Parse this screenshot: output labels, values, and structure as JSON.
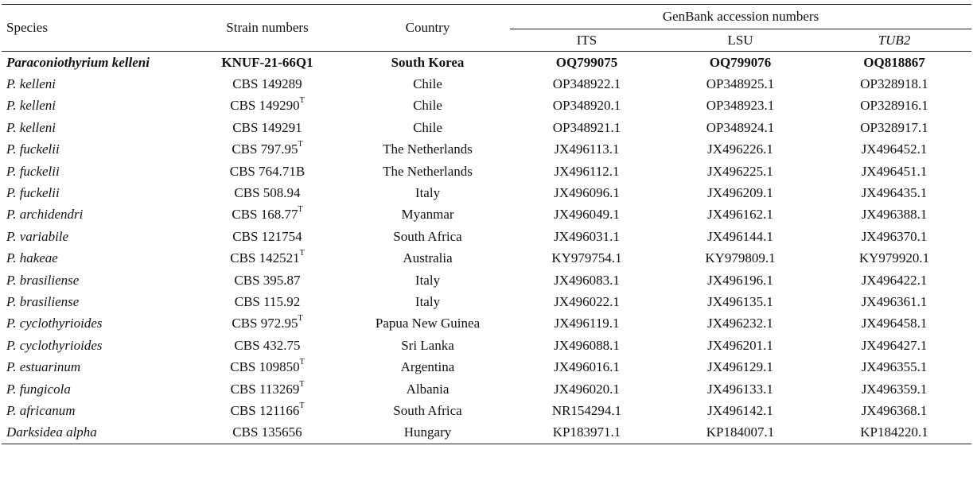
{
  "headers": {
    "species": "Species",
    "strain": "Strain numbers",
    "country": "Country",
    "genbank": "GenBank accession numbers",
    "its": "ITS",
    "lsu": "LSU",
    "tub2": "TUB2"
  },
  "rows": [
    {
      "species": "Paraconiothyrium kelleni",
      "strain": "KNUF-21-66Q1",
      "sup": "",
      "country": "South Korea",
      "its": "OQ799075",
      "lsu": "OQ799076",
      "tub2": "OQ818867",
      "bold": true
    },
    {
      "species": "P. kelleni",
      "strain": "CBS 149289",
      "sup": "",
      "country": "Chile",
      "its": "OP348922.1",
      "lsu": "OP348925.1",
      "tub2": "OP328918.1",
      "bold": false
    },
    {
      "species": "P. kelleni",
      "strain": "CBS 149290",
      "sup": "T",
      "country": "Chile",
      "its": "OP348920.1",
      "lsu": "OP348923.1",
      "tub2": "OP328916.1",
      "bold": false
    },
    {
      "species": "P. kelleni",
      "strain": "CBS 149291",
      "sup": "",
      "country": "Chile",
      "its": "OP348921.1",
      "lsu": "OP348924.1",
      "tub2": "OP328917.1",
      "bold": false
    },
    {
      "species": "P. fuckelii",
      "strain": "CBS 797.95",
      "sup": "T",
      "country": "The Netherlands",
      "its": "JX496113.1",
      "lsu": "JX496226.1",
      "tub2": "JX496452.1",
      "bold": false
    },
    {
      "species": "P. fuckelii",
      "strain": "CBS 764.71B",
      "sup": "",
      "country": "The Netherlands",
      "its": "JX496112.1",
      "lsu": "JX496225.1",
      "tub2": "JX496451.1",
      "bold": false
    },
    {
      "species": "P. fuckelii",
      "strain": "CBS 508.94",
      "sup": "",
      "country": "Italy",
      "its": "JX496096.1",
      "lsu": "JX496209.1",
      "tub2": "JX496435.1",
      "bold": false
    },
    {
      "species": "P. archidendri",
      "strain": "CBS 168.77",
      "sup": "T",
      "country": "Myanmar",
      "its": "JX496049.1",
      "lsu": "JX496162.1",
      "tub2": "JX496388.1",
      "bold": false
    },
    {
      "species": "P. variabile",
      "strain": "CBS 121754",
      "sup": "",
      "country": "South Africa",
      "its": "JX496031.1",
      "lsu": "JX496144.1",
      "tub2": "JX496370.1",
      "bold": false
    },
    {
      "species": "P. hakeae",
      "strain": "CBS 142521",
      "sup": "T",
      "country": "Australia",
      "its": "KY979754.1",
      "lsu": "KY979809.1",
      "tub2": "KY979920.1",
      "bold": false
    },
    {
      "species": "P. brasiliense",
      "strain": "CBS 395.87",
      "sup": "",
      "country": "Italy",
      "its": "JX496083.1",
      "lsu": "JX496196.1",
      "tub2": "JX496422.1",
      "bold": false
    },
    {
      "species": "P. brasiliense",
      "strain": "CBS 115.92",
      "sup": "",
      "country": "Italy",
      "its": "JX496022.1",
      "lsu": "JX496135.1",
      "tub2": "JX496361.1",
      "bold": false
    },
    {
      "species": "P. cyclothyrioides",
      "strain": "CBS 972.95",
      "sup": "T",
      "country": "Papua New Guinea",
      "its": "JX496119.1",
      "lsu": "JX496232.1",
      "tub2": "JX496458.1",
      "bold": false
    },
    {
      "species": "P. cyclothyrioides",
      "strain": "CBS 432.75",
      "sup": "",
      "country": "Sri Lanka",
      "its": "JX496088.1",
      "lsu": "JX496201.1",
      "tub2": "JX496427.1",
      "bold": false
    },
    {
      "species": "P. estuarinum",
      "strain": "CBS 109850",
      "sup": "T",
      "country": "Argentina",
      "its": "JX496016.1",
      "lsu": "JX496129.1",
      "tub2": "JX496355.1",
      "bold": false
    },
    {
      "species": "P. fungicola",
      "strain": "CBS 113269",
      "sup": "T",
      "country": "Albania",
      "its": "JX496020.1",
      "lsu": "JX496133.1",
      "tub2": "JX496359.1",
      "bold": false
    },
    {
      "species": "P. africanum",
      "strain": "CBS 121166",
      "sup": "T",
      "country": "South Africa",
      "its": "NR154294.1",
      "lsu": "JX496142.1",
      "tub2": "JX496368.1",
      "bold": false
    },
    {
      "species": "Darksidea alpha",
      "strain": "CBS 135656",
      "sup": "",
      "country": "Hungary",
      "its": "KP183971.1",
      "lsu": "KP184007.1",
      "tub2": "KP184220.1",
      "bold": false
    }
  ]
}
